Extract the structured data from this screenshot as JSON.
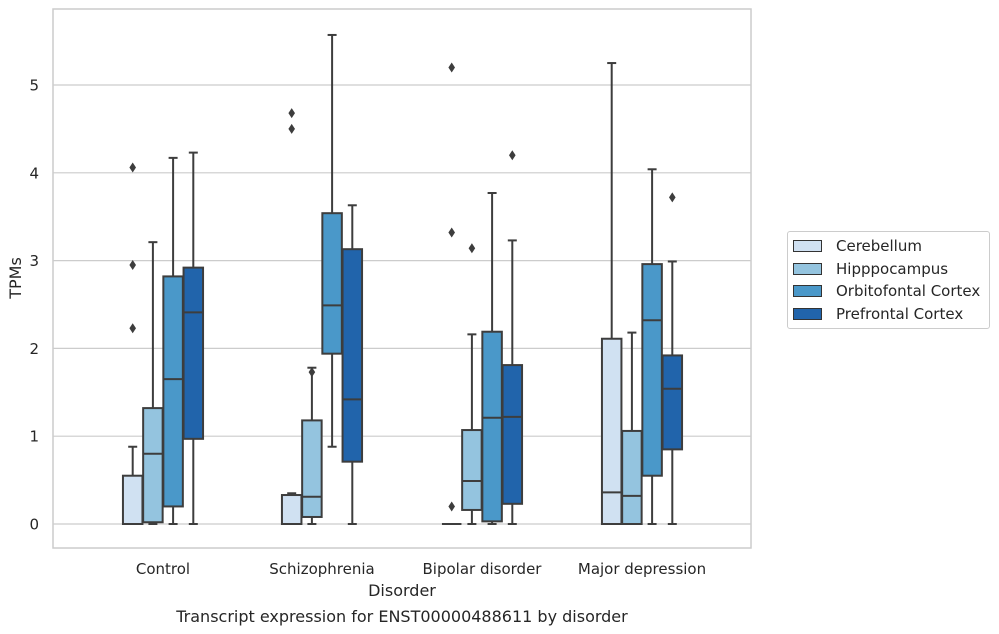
{
  "chart_data": {
    "type": "box",
    "title": "Transcript expression for ENST00000488611 by disorder",
    "xlabel": "Disorder",
    "ylabel": "TPMs",
    "ylim": [
      -0.27,
      5.9
    ],
    "yticks": [
      0,
      1,
      2,
      3,
      4,
      5
    ],
    "grid": "horizontal",
    "legend_position": "right",
    "categories": [
      "Control",
      "Schizophrenia",
      "Bipolar disorder",
      "Major depression"
    ],
    "series": [
      {
        "name": "Cerebellum",
        "color": "#d0e1f2",
        "boxes": [
          {
            "whislo": 0,
            "q1": 0,
            "med": 0,
            "q3": 0.55,
            "whishi": 0.88,
            "fliers": [
              2.23,
              2.95,
              4.06
            ]
          },
          {
            "whislo": 0,
            "q1": 0,
            "med": 0,
            "q3": 0.33,
            "whishi": 0.35,
            "fliers": [
              4.5,
              4.68
            ]
          },
          {
            "whislo": 0,
            "q1": 0,
            "med": 0,
            "q3": 0,
            "whishi": 0,
            "fliers": [
              0.2,
              3.32,
              5.2
            ]
          },
          {
            "whislo": 0,
            "q1": 0,
            "med": 0.36,
            "q3": 2.11,
            "whishi": 5.25,
            "fliers": []
          }
        ]
      },
      {
        "name": "Hipppocampus",
        "color": "#94c4df",
        "boxes": [
          {
            "whislo": 0,
            "q1": 0.02,
            "med": 0.8,
            "q3": 1.32,
            "whishi": 3.21,
            "fliers": []
          },
          {
            "whislo": 0,
            "q1": 0.08,
            "med": 0.31,
            "q3": 1.18,
            "whishi": 1.78,
            "fliers": [
              1.73
            ]
          },
          {
            "whislo": 0,
            "q1": 0.16,
            "med": 0.49,
            "q3": 1.07,
            "whishi": 2.16,
            "fliers": [
              3.14
            ]
          },
          {
            "whislo": 0,
            "q1": 0,
            "med": 0.32,
            "q3": 1.06,
            "whishi": 2.18,
            "fliers": []
          }
        ]
      },
      {
        "name": "Orbitofontal Cortex",
        "color": "#4a98c9",
        "boxes": [
          {
            "whislo": 0,
            "q1": 0.2,
            "med": 1.65,
            "q3": 2.82,
            "whishi": 4.17,
            "fliers": []
          },
          {
            "whislo": 0.88,
            "q1": 1.94,
            "med": 2.49,
            "q3": 3.54,
            "whishi": 5.57,
            "fliers": []
          },
          {
            "whislo": 0,
            "q1": 0.03,
            "med": 1.21,
            "q3": 2.19,
            "whishi": 3.77,
            "fliers": []
          },
          {
            "whislo": 0,
            "q1": 0.55,
            "med": 2.32,
            "q3": 2.96,
            "whishi": 4.04,
            "fliers": []
          }
        ]
      },
      {
        "name": "Prefrontal Cortex",
        "color": "#2164ab",
        "boxes": [
          {
            "whislo": 0,
            "q1": 0.97,
            "med": 2.41,
            "q3": 2.92,
            "whishi": 4.23,
            "fliers": []
          },
          {
            "whislo": 0,
            "q1": 0.71,
            "med": 1.42,
            "q3": 3.13,
            "whishi": 3.63,
            "fliers": []
          },
          {
            "whislo": 0,
            "q1": 0.23,
            "med": 1.22,
            "q3": 1.81,
            "whishi": 3.23,
            "fliers": [
              4.2
            ]
          },
          {
            "whislo": 0,
            "q1": 0.85,
            "med": 1.54,
            "q3": 1.92,
            "whishi": 2.99,
            "fliers": [
              3.72
            ]
          }
        ]
      }
    ]
  }
}
